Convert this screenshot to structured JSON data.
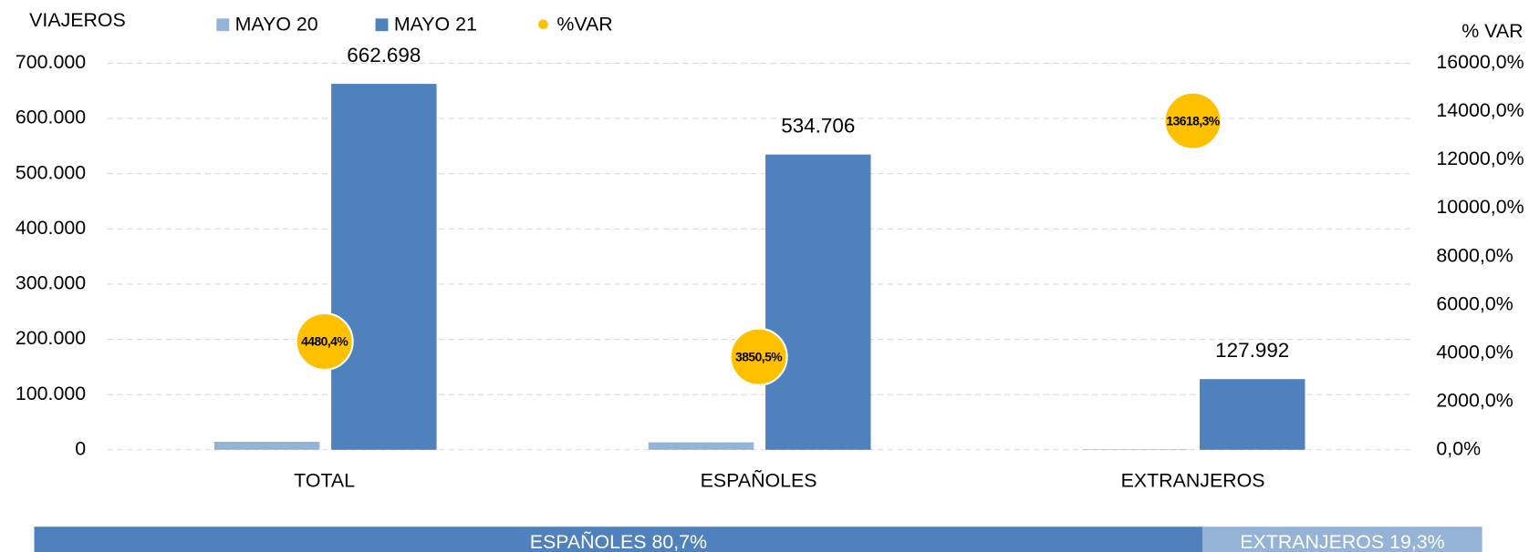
{
  "chart_data": [
    {
      "type": "bar",
      "y_label": "VIAJEROS",
      "y2_label": "% VAR",
      "categories": [
        "TOTAL",
        "ESPAÑOLES",
        "EXTRANJEROS"
      ],
      "series": [
        {
          "name": "MAYO 20",
          "color": "#95b3d7",
          "values": [
            14468,
            13535,
            933
          ]
        },
        {
          "name": "MAYO 21",
          "color": "#4f81bd",
          "values": [
            662698,
            534706,
            127992
          ],
          "value_labels": [
            "662.698",
            "534.706",
            "127.992"
          ]
        },
        {
          "name": "%VAR",
          "color": "#ffc000",
          "axis": "y2",
          "type": "scatter",
          "values": [
            4480.4,
            3850.5,
            13618.3
          ],
          "value_labels": [
            "4480,4%",
            "3850,5%",
            "13618,3%"
          ]
        }
      ],
      "ylim": [
        0,
        700000
      ],
      "yticks": [
        0,
        {
          "value": 100000,
          "label": "100.000"
        },
        {
          "value": 200000,
          "label": "200.000"
        },
        {
          "value": 300000,
          "label": "300.000"
        },
        {
          "value": 400000,
          "label": "400.000"
        },
        {
          "value": 500000,
          "label": "500.000"
        },
        {
          "value": 600000,
          "label": "600.000"
        },
        {
          "value": 700000,
          "label": "700.000"
        }
      ],
      "y2lim": [
        0,
        16000
      ],
      "y2ticks": [
        {
          "value": 0,
          "label": "0,0%"
        },
        {
          "value": 2000,
          "label": "2000,0%"
        },
        {
          "value": 4000,
          "label": "4000,0%"
        },
        {
          "value": 6000,
          "label": "6000,0%"
        },
        {
          "value": 8000,
          "label": "8000,0%"
        },
        {
          "value": 10000,
          "label": "10000,0%"
        },
        {
          "value": 12000,
          "label": "12000,0%"
        },
        {
          "value": 14000,
          "label": "14000,0%"
        },
        {
          "value": 16000,
          "label": "16000,0%"
        }
      ],
      "grid": true,
      "legend": "top"
    },
    {
      "type": "share",
      "values": [
        80.7,
        19.3
      ],
      "value_labels": [
        "ESPAÑOLES 80,7%",
        "EXTRANJEROS 19,3%"
      ],
      "colors": [
        "#4f81bd",
        "#95b3d7"
      ]
    }
  ]
}
